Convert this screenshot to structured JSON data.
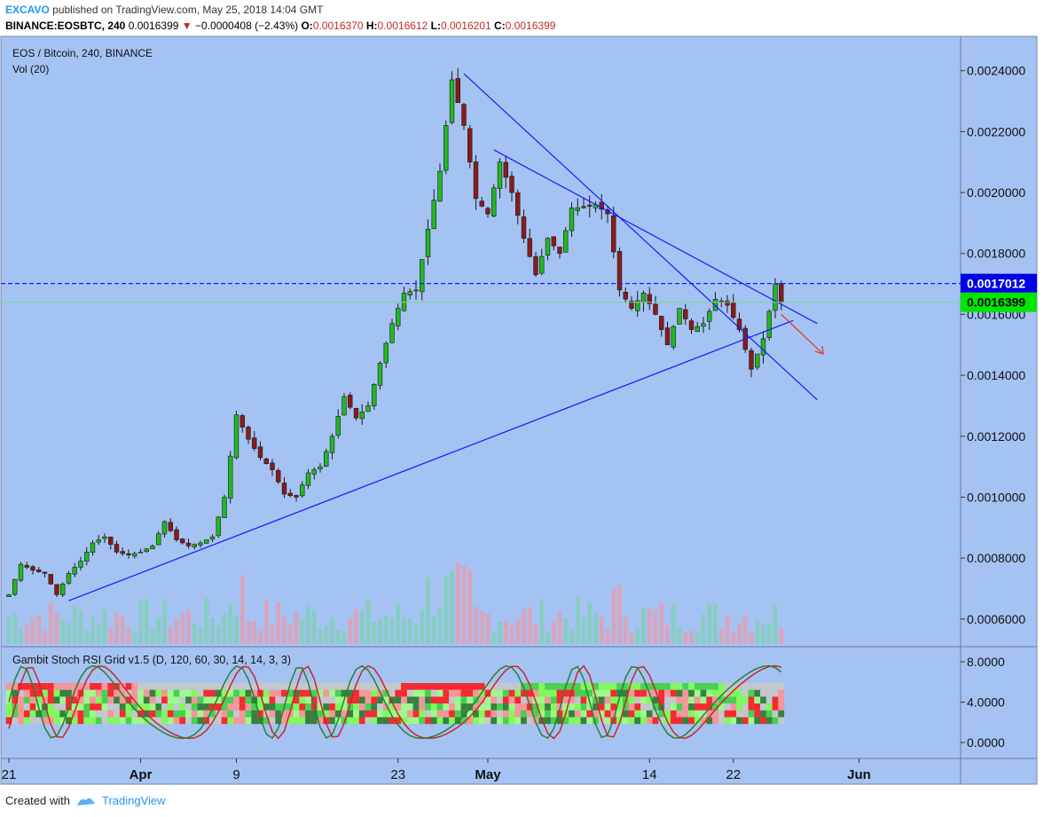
{
  "header": {
    "user": "EXCAVO",
    "published": "published on TradingView.com, May 25, 2018 14:04 GMT",
    "symbol": "BINANCE:EOSBTC, 240",
    "last": "0.0016399",
    "change": "−0.0000408 (−2.43%)",
    "o_label": "O:",
    "o": "0.0016370",
    "h_label": "H:",
    "h": "0.0016612",
    "l_label": "L:",
    "l": "0.0016201",
    "c_label": "C:",
    "c": "0.0016399"
  },
  "overlay": {
    "title": "EOS / Bitcoin, 240, BINANCE",
    "vol": "Vol (20)"
  },
  "indicator": {
    "title": "Gambit Stoch RSI Grid v1.5 (D, 120, 60, 30, 14, 14, 3, 3)"
  },
  "footer": {
    "created": "Created with",
    "brand": "TradingView"
  },
  "colors": {
    "background": "#a4c3f3",
    "up": "#22b822",
    "down": "#8b1a1a",
    "trendline": "#1a1aff",
    "resistance": "#1a1aff",
    "last_price": "#00e600",
    "arrow": "#e53935"
  },
  "chart_data": {
    "type": "candlestick",
    "price_axis": {
      "min": 0.00055,
      "max": 0.00245,
      "ticks": [
        "0.0024000",
        "0.0022000",
        "0.0020000",
        "0.0018000",
        "0.0016000",
        "0.0014000",
        "0.0012000",
        "0.0010000",
        "0.0008000",
        "0.0006000"
      ]
    },
    "time_axis": {
      "labels": [
        "21",
        "Apr",
        "9",
        "23",
        "May",
        "14",
        "22",
        "Jun"
      ]
    },
    "price_labels": {
      "resistance": "0.0017012",
      "last": "0.0016399"
    },
    "close_path": [
      [
        0,
        0.00068
      ],
      [
        2,
        0.00078
      ],
      [
        4,
        0.00076
      ],
      [
        6,
        0.00075
      ],
      [
        8,
        0.00068
      ],
      [
        10,
        0.00075
      ],
      [
        12,
        0.00079
      ],
      [
        14,
        0.00085
      ],
      [
        16,
        0.00087
      ],
      [
        18,
        0.00082
      ],
      [
        20,
        0.00081
      ],
      [
        22,
        0.00082
      ],
      [
        24,
        0.00084
      ],
      [
        26,
        0.00092
      ],
      [
        28,
        0.00086
      ],
      [
        30,
        0.00084
      ],
      [
        32,
        0.00085
      ],
      [
        34,
        0.00087
      ],
      [
        36,
        0.001
      ],
      [
        38,
        0.00127
      ],
      [
        40,
        0.00119
      ],
      [
        42,
        0.00113
      ],
      [
        44,
        0.00109
      ],
      [
        46,
        0.00101
      ],
      [
        48,
        0.001
      ],
      [
        50,
        0.00108
      ],
      [
        52,
        0.0011
      ],
      [
        54,
        0.0012
      ],
      [
        56,
        0.00133
      ],
      [
        58,
        0.00126
      ],
      [
        60,
        0.0013
      ],
      [
        62,
        0.00144
      ],
      [
        64,
        0.00157
      ],
      [
        66,
        0.00167
      ],
      [
        68,
        0.00168
      ],
      [
        70,
        0.00188
      ],
      [
        72,
        0.00207
      ],
      [
        74,
        0.00237
      ],
      [
        76,
        0.00222
      ],
      [
        78,
        0.00198
      ],
      [
        80,
        0.00193
      ],
      [
        82,
        0.0021
      ],
      [
        84,
        0.002
      ],
      [
        86,
        0.00185
      ],
      [
        88,
        0.00173
      ],
      [
        90,
        0.00185
      ],
      [
        92,
        0.0018
      ],
      [
        94,
        0.00195
      ],
      [
        96,
        0.00195
      ],
      [
        98,
        0.00196
      ],
      [
        100,
        0.00193
      ],
      [
        102,
        0.00168
      ],
      [
        104,
        0.00162
      ],
      [
        106,
        0.00167
      ],
      [
        108,
        0.0016
      ],
      [
        110,
        0.0015
      ],
      [
        112,
        0.00162
      ],
      [
        114,
        0.00155
      ],
      [
        116,
        0.00157
      ],
      [
        118,
        0.00165
      ],
      [
        120,
        0.00163
      ],
      [
        122,
        0.00155
      ],
      [
        124,
        0.00142
      ],
      [
        126,
        0.00152
      ],
      [
        128,
        0.0017
      ],
      [
        129,
        0.00164
      ]
    ],
    "trendlines": [
      {
        "name": "rising-support",
        "from": [
          10,
          0.00066
        ],
        "to": [
          131,
          0.00158
        ]
      },
      {
        "name": "falling-resistance-1",
        "from": [
          76,
          0.00239
        ],
        "to": [
          135,
          0.00132
        ]
      },
      {
        "name": "falling-resistance-2",
        "from": [
          81,
          0.00214
        ],
        "to": [
          135,
          0.00157
        ]
      }
    ],
    "stoch_rsi": {
      "range": [
        0,
        8
      ],
      "ticks": [
        "8.0000",
        "4.0000",
        "0.0000"
      ]
    }
  }
}
